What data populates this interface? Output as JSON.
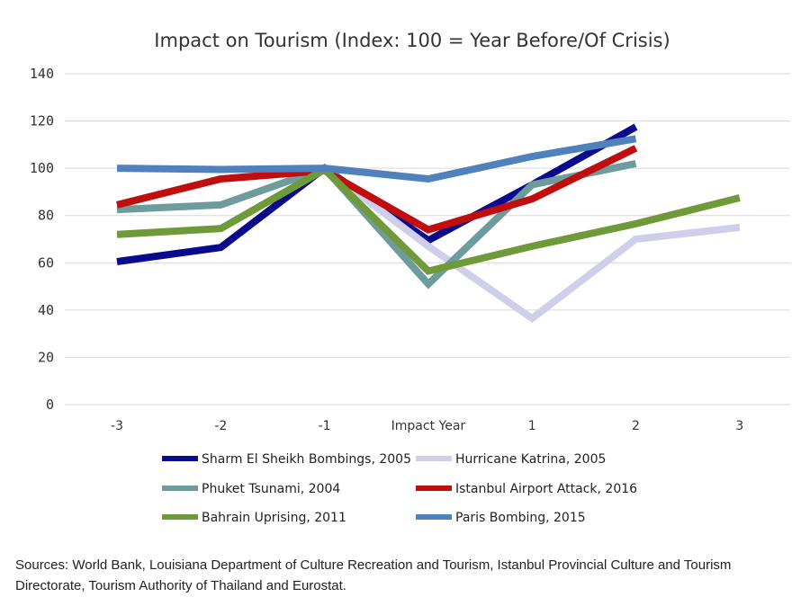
{
  "chart_data": {
    "type": "line",
    "title": "Impact on Tourism (Index: 100 = Year Before/Of Crisis)",
    "categories": [
      "-3",
      "-2",
      "-1",
      "Impact Year",
      "1",
      "2",
      "3"
    ],
    "ylim": [
      0,
      140
    ],
    "yticks": [
      0,
      20,
      40,
      60,
      80,
      100,
      120,
      140
    ],
    "grid": true,
    "legend_position": "bottom",
    "series": [
      {
        "name": "Sharm El Sheikh Bombings, 2005",
        "color": "#0a0a8c",
        "values": [
          60.5,
          66.5,
          100,
          69.5,
          93,
          117.5,
          null
        ]
      },
      {
        "name": "Hurricane Katrina, 2005",
        "color": "#cfcfec",
        "values": [
          null,
          null,
          100,
          67,
          36.5,
          70,
          75
        ]
      },
      {
        "name": "Phuket Tsunami, 2004",
        "color": "#6e9b9c",
        "values": [
          82.5,
          84.5,
          100,
          51,
          93,
          102,
          null
        ]
      },
      {
        "name": "Istanbul Airport Attack, 2016",
        "color": "#c00d0d",
        "values": [
          84.5,
          95.5,
          99,
          74,
          87,
          108.5,
          null
        ]
      },
      {
        "name": "Bahrain Uprising, 2011",
        "color": "#6f9a3a",
        "values": [
          72,
          74.5,
          99.5,
          56.5,
          67,
          76.5,
          87.5
        ]
      },
      {
        "name": "Paris Bombing, 2015",
        "color": "#4f81bd",
        "values": [
          100,
          99.5,
          100,
          95.5,
          105,
          112.5,
          null
        ]
      }
    ]
  },
  "sources": "Sources: World Bank, Louisiana Department of Culture Recreation and Tourism, Istanbul Provincial Culture and Tourism Directorate, Tourism Authority of Thailand and Eurostat."
}
